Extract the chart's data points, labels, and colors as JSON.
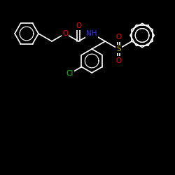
{
  "bg_color": "#000000",
  "bond_color": "#ffffff",
  "atom_colors": {
    "O": "#ff0000",
    "N": "#3333ff",
    "S": "#ccaa00",
    "Cl": "#00cc00",
    "C": "#ffffff"
  },
  "figsize": [
    2.5,
    2.5
  ],
  "dpi": 100,
  "lw": 1.2,
  "ring_r": 17
}
